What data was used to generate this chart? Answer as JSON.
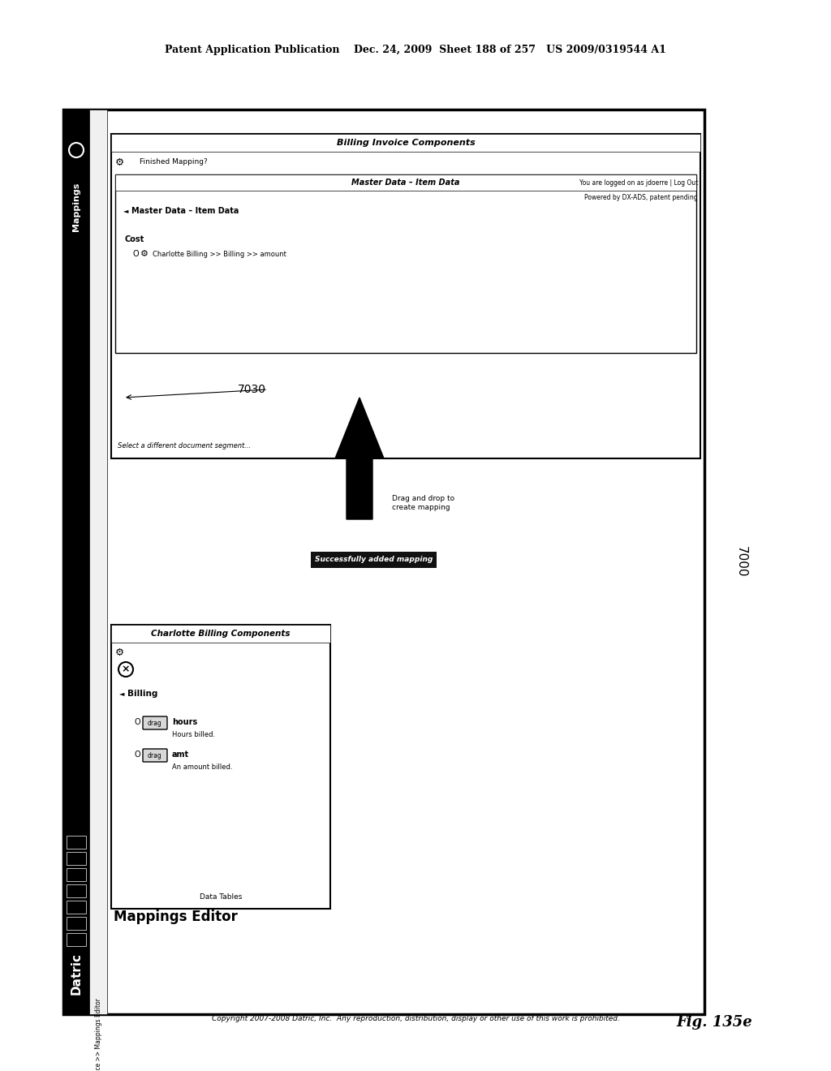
{
  "header_text": "Patent Application Publication    Dec. 24, 2009  Sheet 188 of 257   US 2009/0319544 A1",
  "fig_label": "Fig. 135e",
  "ref_7000": "7000",
  "ref_7030": "7030",
  "bg_color": "#ffffff",
  "title_datric": "Datric",
  "mappings_label": "Mappings",
  "location_text": "Location: Mappings >> Billing Invoice >> Mappings Editor",
  "logged_in_line1": "You are logged on as jdoerre | Log Out",
  "logged_in_line2": "Powered by DX-ADS, patent pending",
  "section_title": "Mappings Editor",
  "left_panel_title": "Charlotte Billing Components",
  "right_panel_title": "Billing Invoice Components",
  "left_tree_root": "Billing",
  "left_item1_label": "hours",
  "left_item1_sub": "Hours billed.",
  "left_item2_label": "amt",
  "left_item2_sub": "An amount billed.",
  "right_subtitle": "Master Data – Item Data",
  "right_item_label": "Cost",
  "right_item_sub": "Charlotte Billing >> Billing >> amount",
  "finished_mapping_text": "Finished Mapping?",
  "drag_drop_text": "Drag and drop to\ncreate mapping",
  "success_text": "Successfully added mapping",
  "select_text": "Select a different document segment...",
  "data_tables_text": "Data Tables",
  "copyright_text": "Copyright 2007-2008 Datric, Inc.  Any reproduction, distribution, display or other use of this work is prohibited."
}
